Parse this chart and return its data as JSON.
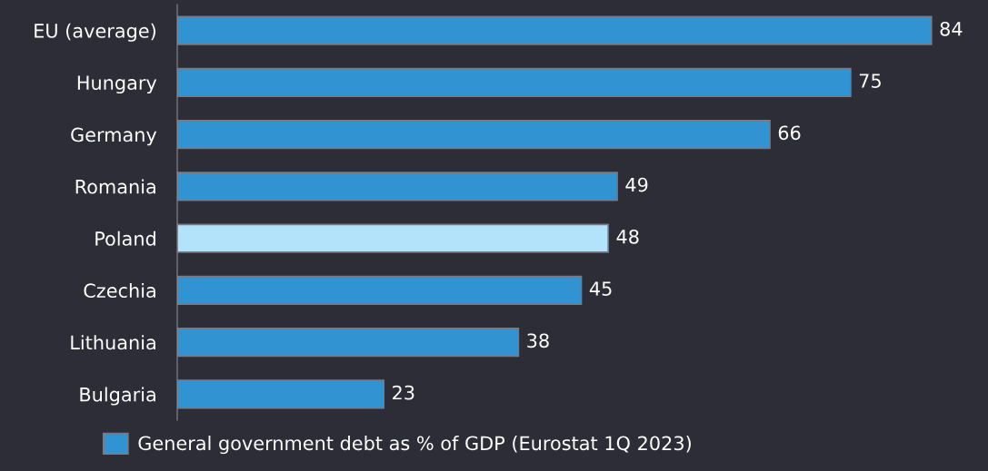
{
  "chart_data": {
    "type": "bar",
    "orientation": "horizontal",
    "categories": [
      "EU (average)",
      "Hungary",
      "Germany",
      "Romania",
      "Poland",
      "Czechia",
      "Lithuania",
      "Bulgaria"
    ],
    "series": [
      {
        "name": "General government debt as % of GDP (Eurostat 1Q 2023)",
        "color": "#3193d2",
        "values": [
          84,
          75,
          66,
          49,
          48,
          45,
          38,
          23
        ],
        "colors": [
          "#3193d2",
          "#3193d2",
          "#3193d2",
          "#3193d2",
          "#b3e2fb",
          "#3193d2",
          "#3193d2",
          "#3193d2"
        ]
      }
    ],
    "data_labels": true,
    "legend": "bottom",
    "grid": false
  }
}
